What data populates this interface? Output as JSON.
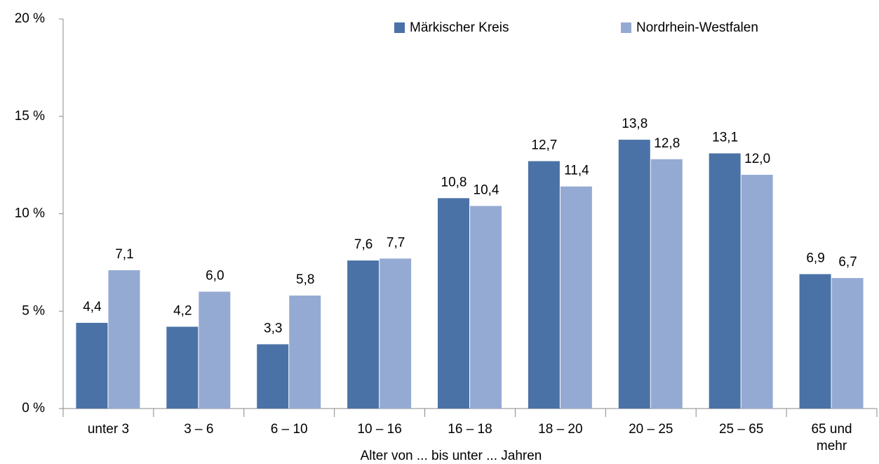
{
  "chart_data": {
    "type": "bar",
    "categories": [
      "unter 3",
      "3 –  6",
      "6 – 10",
      "10 – 16",
      "16 – 18",
      "18 – 20",
      "20 – 25",
      "25 – 65",
      "65 und mehr"
    ],
    "series": [
      {
        "name": "Märkischer Kreis",
        "color": "#4a72a6",
        "values": [
          4.4,
          4.2,
          3.3,
          7.6,
          10.8,
          12.7,
          13.8,
          13.1,
          6.9
        ],
        "value_labels": [
          "4,4",
          "4,2",
          "3,3",
          "7,6",
          "10,8",
          "12,7",
          "13,8",
          "13,1",
          "6,9"
        ]
      },
      {
        "name": "Nordrhein-Westfalen",
        "color": "#95aad3",
        "values": [
          7.1,
          6.0,
          5.8,
          7.7,
          10.4,
          11.4,
          12.8,
          12.0,
          6.7
        ],
        "value_labels": [
          "7,1",
          "6,0",
          "5,8",
          "7,7",
          "10,4",
          "11,4",
          "12,8",
          "12,0",
          "6,7"
        ]
      }
    ],
    "x_label": "Alter von ... bis unter ... Jahren",
    "ylim": [
      0,
      20
    ],
    "yticks": [
      {
        "value": 0,
        "label": "0 %"
      },
      {
        "value": 5,
        "label": "5 %"
      },
      {
        "value": 10,
        "label": "10 %"
      },
      {
        "value": 15,
        "label": "15 %"
      },
      {
        "value": 20,
        "label": "20 %"
      }
    ],
    "grid": false,
    "legend": "top"
  }
}
